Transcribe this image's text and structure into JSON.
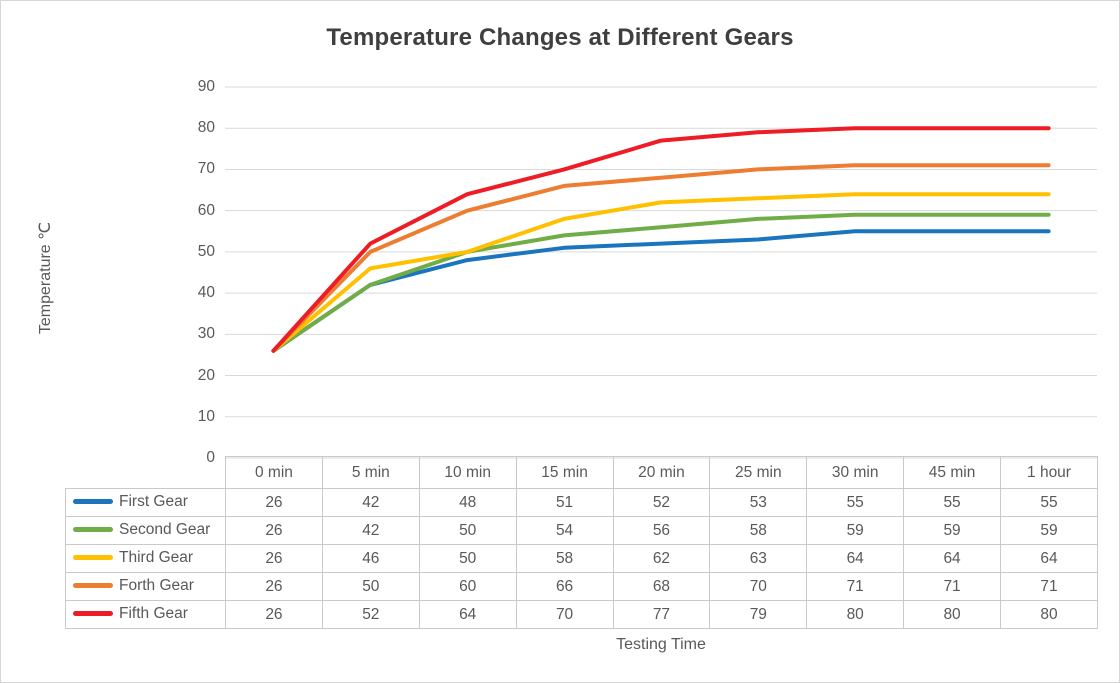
{
  "window": {
    "background": "#FFFFFF",
    "border_color": "#D7D7D7"
  },
  "title": "Temperature Changes at Different Gears",
  "axes": {
    "y_title": "Temperature ℃",
    "x_title": "Testing Time"
  },
  "chart_data": {
    "type": "line",
    "title": "Temperature Changes at Different Gears",
    "xlabel": "Testing Time",
    "ylabel": "Temperature ℃",
    "categories": [
      "0 min",
      "5 min",
      "10 min",
      "15 min",
      "20 min",
      "25 min",
      "30 min",
      "45 min",
      "1 hour"
    ],
    "yticks": [
      0,
      10,
      20,
      30,
      40,
      50,
      60,
      70,
      80,
      90
    ],
    "ylim": [
      0,
      90
    ],
    "grid": "horizontal-only",
    "gridline_color": "#D9D9D9",
    "legend_position": "data-table-left",
    "series": [
      {
        "name": "First Gear",
        "color": "#1B74BE",
        "values": [
          26,
          42,
          48,
          51,
          52,
          53,
          55,
          55,
          55
        ]
      },
      {
        "name": "Second Gear",
        "color": "#70AD47",
        "values": [
          26,
          42,
          50,
          54,
          56,
          58,
          59,
          59,
          59
        ]
      },
      {
        "name": "Third Gear",
        "color": "#FFC000",
        "values": [
          26,
          46,
          50,
          58,
          62,
          63,
          64,
          64,
          64
        ]
      },
      {
        "name": "Forth Gear",
        "color": "#ED7D31",
        "values": [
          26,
          50,
          60,
          66,
          68,
          70,
          71,
          71,
          71
        ]
      },
      {
        "name": "Fifth Gear",
        "color": "#EE1C25",
        "values": [
          26,
          52,
          64,
          70,
          77,
          79,
          80,
          80,
          80
        ]
      }
    ]
  },
  "table": {
    "border_color": "#C9C9C9",
    "text_color": "#595959"
  }
}
